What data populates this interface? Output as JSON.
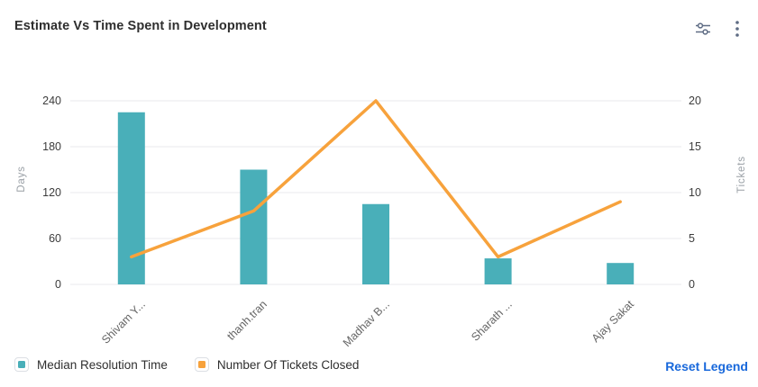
{
  "header": {
    "title": "Estimate Vs Time Spent in Development",
    "icons": [
      {
        "name": "filter-sliders-icon"
      },
      {
        "name": "more-options-icon"
      }
    ]
  },
  "chart_data": {
    "type": "bar-line-combo",
    "categories": [
      "Shivam Y...",
      "thanh.tran",
      "Madhav B...",
      "Sharath ...",
      "Ajay Sakat"
    ],
    "series": [
      {
        "name": "Median Resolution Time",
        "type": "bar",
        "axis": "left",
        "color": "#49AFB9",
        "values": [
          225,
          150,
          105,
          34,
          28
        ]
      },
      {
        "name": "Number Of Tickets Closed",
        "type": "line",
        "axis": "right",
        "color": "#F7A23C",
        "values": [
          3,
          8,
          20,
          3,
          9
        ]
      }
    ],
    "left_axis": {
      "label": "Days",
      "ticks": [
        0,
        60,
        120,
        180,
        240
      ],
      "min": 0,
      "max": 240
    },
    "right_axis": {
      "label": "Tickets",
      "ticks": [
        0,
        5,
        10,
        15,
        20
      ],
      "min": 0,
      "max": 20
    },
    "grid": true,
    "legend_position": "bottom"
  },
  "legend": {
    "items": [
      {
        "label": "Median Resolution Time",
        "color": "#49AFB9"
      },
      {
        "label": "Number Of Tickets Closed",
        "color": "#F7A23C"
      }
    ],
    "reset_label": "Reset Legend"
  },
  "colors": {
    "bar": "#49AFB9",
    "line": "#F7A23C",
    "link": "#1868DB",
    "grid": "#EDEEF1",
    "title_text": "#2E2E2E",
    "tick_text": "#3C3C3C",
    "axis_name_text": "#9AA0A6",
    "category_text": "#666666",
    "icon": "#5E6C84"
  }
}
